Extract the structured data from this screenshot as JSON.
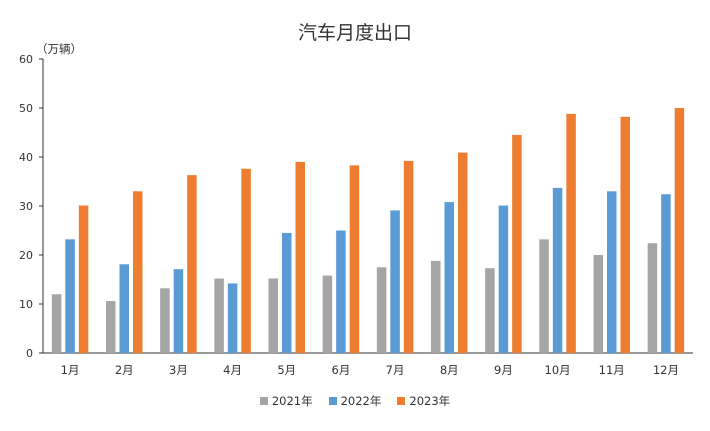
{
  "chart_data": {
    "type": "bar",
    "title": "汽车月度出口",
    "unit_label": "（万辆）",
    "categories": [
      "1月",
      "2月",
      "3月",
      "4月",
      "5月",
      "6月",
      "7月",
      "8月",
      "9月",
      "10月",
      "11月",
      "12月"
    ],
    "series": [
      {
        "name": "2021年",
        "color": "#a5a5a5",
        "values": [
          12.0,
          10.6,
          13.2,
          15.2,
          15.2,
          15.8,
          17.5,
          18.8,
          17.3,
          23.2,
          20.0,
          22.4
        ]
      },
      {
        "name": "2022年",
        "color": "#5b9bd5",
        "values": [
          23.2,
          18.1,
          17.1,
          14.2,
          24.5,
          25.0,
          29.1,
          30.8,
          30.1,
          33.7,
          33.0,
          32.4
        ]
      },
      {
        "name": "2023年",
        "color": "#ed7d31",
        "values": [
          30.1,
          33.0,
          36.3,
          37.6,
          39.0,
          38.3,
          39.2,
          40.9,
          44.5,
          48.8,
          48.2,
          50.0
        ]
      }
    ],
    "ylim": [
      0,
      60
    ],
    "yticks": [
      0,
      10,
      20,
      30,
      40,
      50,
      60
    ],
    "grid": false,
    "legend_position": "bottom"
  }
}
